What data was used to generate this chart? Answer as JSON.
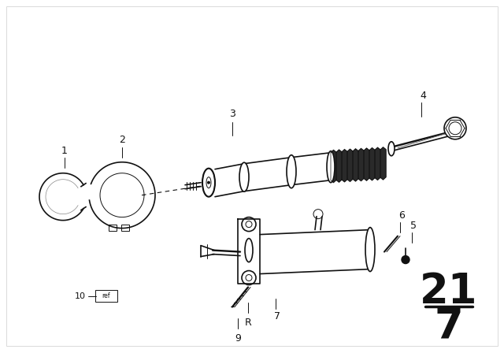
{
  "bg_color": "#ffffff",
  "line_color": "#111111",
  "fig_width": 6.4,
  "fig_height": 4.48,
  "dpi": 100,
  "page_number": "21",
  "page_sub": "7"
}
